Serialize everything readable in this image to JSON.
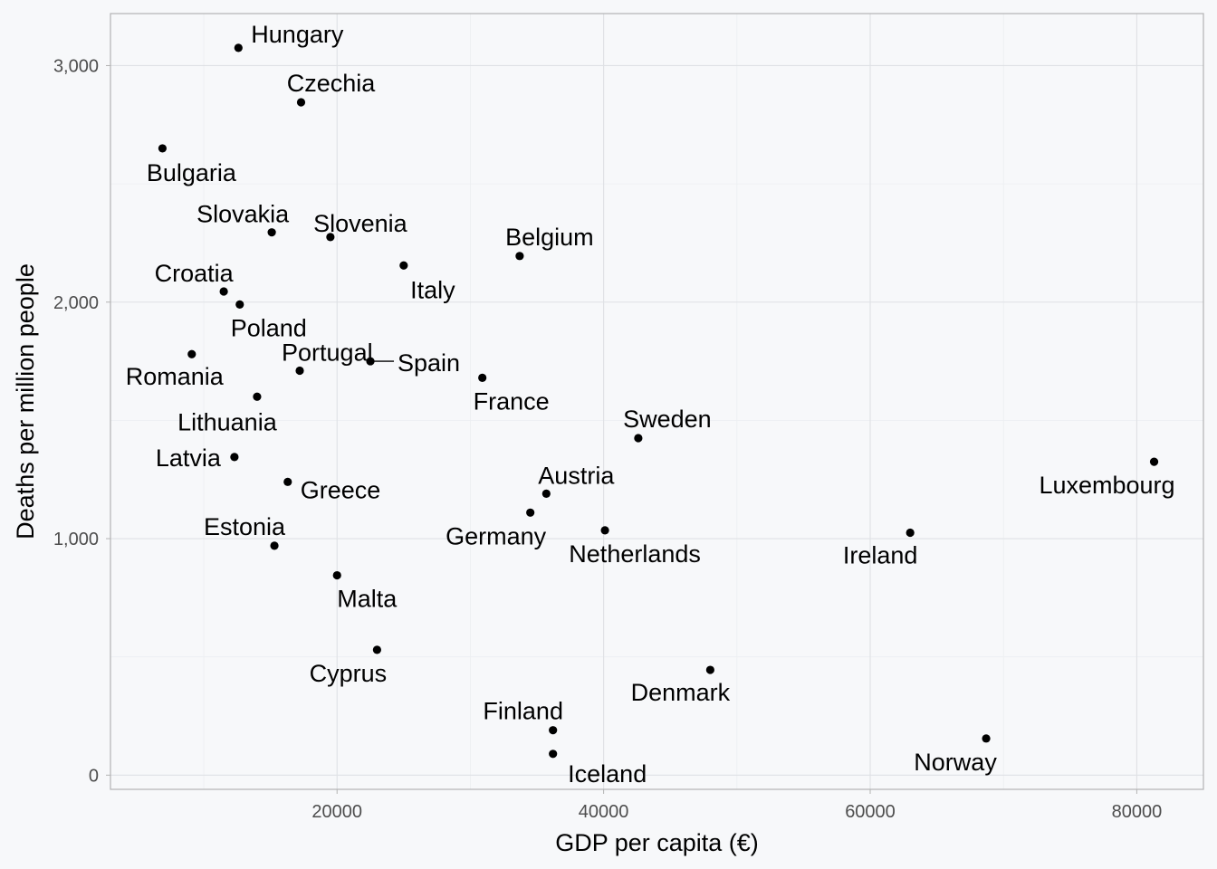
{
  "chart_data": {
    "type": "scatter",
    "xlabel": "GDP per capita (€)",
    "ylabel": "Deaths per million people",
    "xlim": [
      3000,
      85000
    ],
    "ylim": [
      -60,
      3220
    ],
    "x_ticks": [
      20000,
      40000,
      60000,
      80000
    ],
    "y_ticks": [
      0,
      1000,
      2000,
      3000
    ],
    "x_tick_labels": [
      "20000",
      "40000",
      "60000",
      "80000"
    ],
    "y_tick_labels": [
      "0",
      "1,000",
      "2,000",
      "3,000"
    ],
    "grid": true,
    "points": [
      {
        "label": "Hungary",
        "x": 12600,
        "y": 3075
      },
      {
        "label": "Czechia",
        "x": 17300,
        "y": 2845
      },
      {
        "label": "Bulgaria",
        "x": 6900,
        "y": 2650
      },
      {
        "label": "Slovakia",
        "x": 15100,
        "y": 2295
      },
      {
        "label": "Slovenia",
        "x": 19500,
        "y": 2275
      },
      {
        "label": "Belgium",
        "x": 33700,
        "y": 2195
      },
      {
        "label": "Italy",
        "x": 25000,
        "y": 2155
      },
      {
        "label": "Croatia",
        "x": 11500,
        "y": 2045
      },
      {
        "label": "Poland",
        "x": 12700,
        "y": 1990
      },
      {
        "label": "Romania",
        "x": 9100,
        "y": 1780
      },
      {
        "label": "Spain",
        "x": 22500,
        "y": 1750
      },
      {
        "label": "Portugal",
        "x": 17200,
        "y": 1710
      },
      {
        "label": "France",
        "x": 30900,
        "y": 1680
      },
      {
        "label": "Lithuania",
        "x": 14000,
        "y": 1600
      },
      {
        "label": "Sweden",
        "x": 42600,
        "y": 1425
      },
      {
        "label": "Latvia",
        "x": 12300,
        "y": 1345
      },
      {
        "label": "Luxembourg",
        "x": 81300,
        "y": 1325
      },
      {
        "label": "Greece",
        "x": 16300,
        "y": 1240
      },
      {
        "label": "Austria",
        "x": 35700,
        "y": 1190
      },
      {
        "label": "Germany",
        "x": 34500,
        "y": 1110
      },
      {
        "label": "Netherlands",
        "x": 40100,
        "y": 1035
      },
      {
        "label": "Ireland",
        "x": 63000,
        "y": 1025
      },
      {
        "label": "Estonia",
        "x": 15300,
        "y": 970
      },
      {
        "label": "Malta",
        "x": 20000,
        "y": 845
      },
      {
        "label": "Cyprus",
        "x": 23000,
        "y": 530
      },
      {
        "label": "Denmark",
        "x": 48000,
        "y": 445
      },
      {
        "label": "Finland",
        "x": 36200,
        "y": 190
      },
      {
        "label": "Norway",
        "x": 68700,
        "y": 155
      },
      {
        "label": "Iceland",
        "x": 36200,
        "y": 90
      }
    ]
  }
}
